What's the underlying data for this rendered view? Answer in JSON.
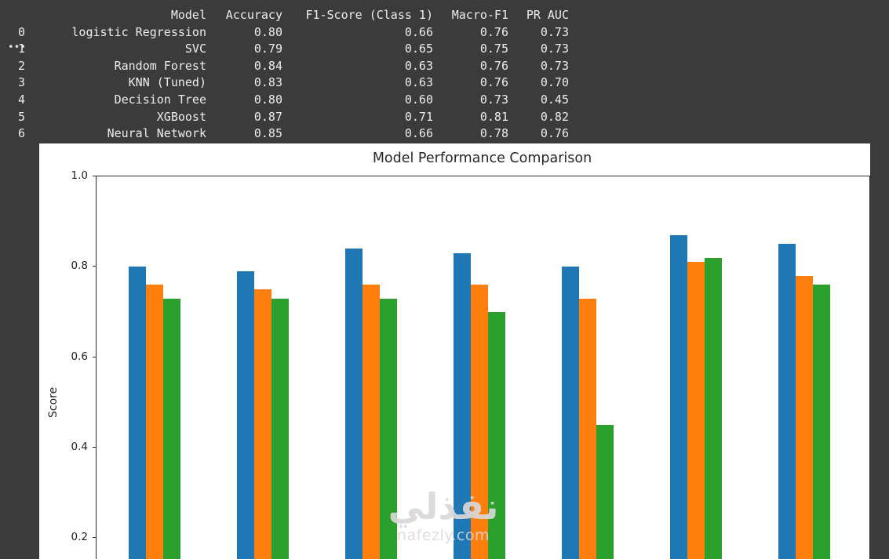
{
  "colors": {
    "terminal_bg": "#3b3b3b",
    "terminal_text": "#ededed",
    "panel_bg": "#ffffff",
    "series_colors": [
      "#1f77b4",
      "#ff7f0e",
      "#2ca02c"
    ]
  },
  "terminal": {
    "ellipsis": "•••",
    "header": {
      "model": "Model",
      "accuracy": "Accuracy",
      "f1": "F1-Score (Class 1)",
      "macro_f1": "Macro-F1",
      "pr_auc": "PR AUC"
    },
    "rows": [
      [
        "0",
        "logistic Regression",
        "0.80",
        "0.66",
        "0.76",
        "0.73"
      ],
      [
        "1",
        "SVC",
        "0.79",
        "0.65",
        "0.75",
        "0.73"
      ],
      [
        "2",
        "Random Forest",
        "0.84",
        "0.63",
        "0.76",
        "0.73"
      ],
      [
        "3",
        "KNN (Tuned)",
        "0.83",
        "0.63",
        "0.76",
        "0.70"
      ],
      [
        "4",
        "Decision Tree",
        "0.80",
        "0.60",
        "0.73",
        "0.45"
      ],
      [
        "5",
        "XGBoost",
        "0.87",
        "0.71",
        "0.81",
        "0.82"
      ],
      [
        "6",
        "Neural Network",
        "0.85",
        "0.66",
        "0.78",
        "0.76"
      ]
    ]
  },
  "chart_data": {
    "type": "bar",
    "title": "Model Performance Comparison",
    "xlabel": "",
    "ylabel": "Score",
    "categories": [
      "logistic Regression",
      "SVC",
      "Random Forest",
      "KNN (Tuned)",
      "Decision Tree",
      "XGBoost",
      "Neural Network"
    ],
    "series": [
      {
        "name": "Accuracy",
        "color": "#1f77b4",
        "values": [
          0.8,
          0.79,
          0.84,
          0.83,
          0.8,
          0.87,
          0.85
        ]
      },
      {
        "name": "Macro-F1",
        "color": "#ff7f0e",
        "values": [
          0.76,
          0.75,
          0.76,
          0.76,
          0.73,
          0.81,
          0.78
        ]
      },
      {
        "name": "PR AUC",
        "color": "#2ca02c",
        "values": [
          0.73,
          0.73,
          0.73,
          0.7,
          0.45,
          0.82,
          0.76
        ]
      }
    ],
    "yticks": [
      1.0,
      0.8,
      0.6,
      0.4,
      0.2
    ],
    "ylim_visible": [
      0.15,
      1.0
    ],
    "grid": false,
    "legend_visible": false,
    "x_axis_cropped": true
  },
  "watermark": {
    "name": "نفذلي",
    "domain": "nafezly.com"
  }
}
